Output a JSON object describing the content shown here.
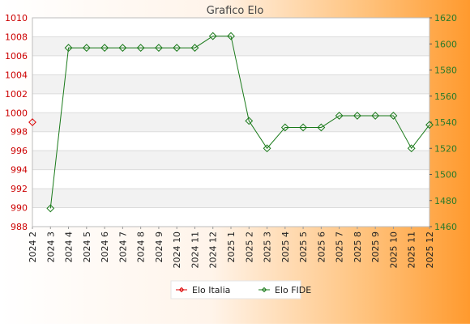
{
  "chart_data": {
    "type": "line",
    "title": "Grafico Elo",
    "categories": [
      "2024 2",
      "2024 3",
      "2024 4",
      "2024 5",
      "2024 6",
      "2024 7",
      "2024 8",
      "2024 9",
      "2024 10",
      "2024 11",
      "2024 12",
      "2025 1",
      "2025 2",
      "2025 3",
      "2025 4",
      "2025 5",
      "2025 6",
      "2025 7",
      "2025 8",
      "2025 9",
      "2025 10",
      "2025 11",
      "2025 12"
    ],
    "y_left": {
      "min": 988,
      "max": 1010,
      "step": 2,
      "color": "#cc0000"
    },
    "y_right": {
      "min": 1460,
      "max": 1620,
      "step": 20,
      "color": "#2a7a2a"
    },
    "series": [
      {
        "name": "Elo Italia",
        "axis": "left",
        "color": "#dd0000",
        "values": [
          999,
          null,
          null,
          null,
          null,
          null,
          null,
          null,
          null,
          null,
          null,
          null,
          null,
          null,
          null,
          null,
          null,
          null,
          null,
          null,
          null,
          null,
          null
        ]
      },
      {
        "name": "Elo FIDE",
        "axis": "right",
        "color": "#1a7a1a",
        "values": [
          null,
          1474,
          1597,
          1597,
          1597,
          1597,
          1597,
          1597,
          1597,
          1597,
          1606,
          1606,
          1541,
          1520,
          1536,
          1536,
          1536,
          1545,
          1545,
          1545,
          1545,
          1520,
          1538
        ]
      }
    ],
    "grid": true,
    "legend_position": "bottom"
  }
}
